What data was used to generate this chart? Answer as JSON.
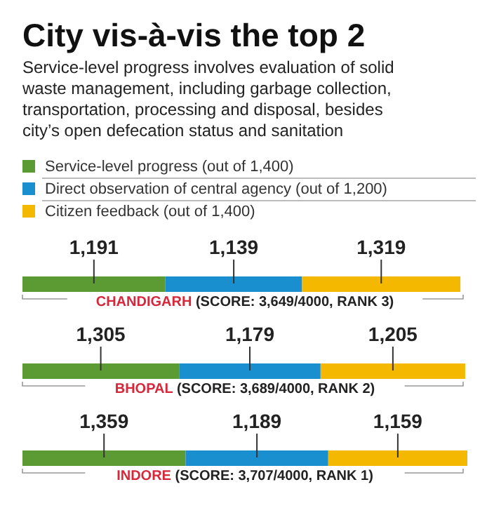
{
  "chart_data": {
    "type": "bar",
    "orientation": "horizontal",
    "stacked": true,
    "legend": "top",
    "title": "City vis-à-vis the top 2",
    "subtitle": "Service-level progress involves evaluation of solid waste management, including garbage collection, transportation, processing and disposal, besides city’s open defecation status and sanitation",
    "categories": [
      "CHANDIGARH (SCORE: 3,649/4000, RANK 3)",
      "BHOPAL (SCORE: 3,689/4000, RANK 2)",
      "INDORE (SCORE: 3,707/4000, RANK 1)"
    ],
    "series": [
      {
        "name": "Service-level progress (out of 1,400)",
        "color": "#5c9a33",
        "values": [
          1191,
          1305,
          1359
        ],
        "value_labels": [
          "1,191",
          "1,305",
          "1,359"
        ]
      },
      {
        "name": "Direct observation of central agency (out of 1,200)",
        "color": "#1a8fd0",
        "values": [
          1139,
          1179,
          1189
        ],
        "value_labels": [
          "1,139",
          "1,179",
          "1,189"
        ]
      },
      {
        "name": "Citizen feedback (out of 1,400)",
        "color": "#f5b800",
        "values": [
          1319,
          1205,
          1159
        ],
        "value_labels": [
          "1,319",
          "1,205",
          "1,159"
        ]
      }
    ]
  }
}
